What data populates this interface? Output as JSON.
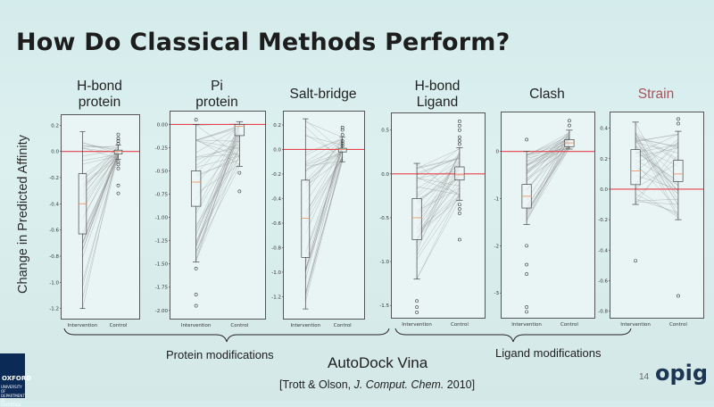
{
  "slide": {
    "title": "How Do Classical Methods Perform?",
    "y_axis_label": "Change in Predicted Affinity",
    "group_labels": [
      "Protein modifications",
      "Ligand modifications"
    ],
    "software": "AutoDock Vina",
    "citation": {
      "prefix": "[Trott & Olson, ",
      "journal": "J. Comput. Chem.",
      "suffix": " 2010]"
    },
    "slide_number": "14",
    "logo_text": "opig",
    "institution_logo": "OXFORD",
    "institution_sub": [
      "UNIVERSITY OF",
      "DEPARTMENT OF",
      "STATISTICS"
    ]
  },
  "colors": {
    "reference_line": "#e8424e",
    "pair_lines": "#8c8c8c",
    "box": "#444444",
    "median": "#e89a6b"
  },
  "chart_data": [
    {
      "type": "box-paired",
      "title": "H-bond\nprotein",
      "categories": [
        "Intervention",
        "Control"
      ],
      "ylim": [
        -1.25,
        0.25
      ],
      "yticks": [
        0.2,
        0.0,
        -0.2,
        -0.4,
        -0.6,
        -0.8,
        -1.0,
        -1.2
      ],
      "ytick_labels": [
        "0.2",
        "0.0",
        "-0.2",
        "-0.4",
        "-0.6",
        "-0.8",
        "-1.0",
        "-1.2"
      ],
      "reference_y": 0.0,
      "intervention_box": {
        "whisker_low": -1.2,
        "q1": -0.63,
        "median": -0.4,
        "q3": -0.17,
        "whisker_high": 0.15
      },
      "control_box": {
        "whisker_low": -0.06,
        "q1": -0.02,
        "median": 0.0,
        "q3": 0.01,
        "whisker_high": 0.05
      },
      "control_outliers": [
        0.13,
        0.1,
        0.08,
        0.06,
        -0.08,
        -0.1,
        -0.13,
        -0.26,
        -0.32
      ]
    },
    {
      "type": "box-paired",
      "title": "Pi\nprotein",
      "categories": [
        "Intervention",
        "Control"
      ],
      "ylim": [
        -2.05,
        0.1
      ],
      "yticks": [
        0.0,
        -0.25,
        -0.5,
        -0.75,
        -1.0,
        -1.25,
        -1.5,
        -1.75,
        -2.0
      ],
      "ytick_labels": [
        "0.00",
        "-0.25",
        "-0.50",
        "-0.75",
        "-1.00",
        "-1.25",
        "-1.50",
        "-1.75",
        "-2.00"
      ],
      "reference_y": 0.0,
      "intervention_box": {
        "whisker_low": -1.48,
        "q1": -0.88,
        "median": -0.62,
        "q3": -0.5,
        "whisker_high": 0.0
      },
      "intervention_outliers": [
        0.05,
        -1.55,
        -1.83,
        -1.95
      ],
      "control_box": {
        "whisker_low": -0.45,
        "q1": -0.12,
        "median": -0.02,
        "q3": 0.0,
        "whisker_high": 0.03
      },
      "control_outliers": [
        -0.52,
        -0.72
      ]
    },
    {
      "type": "box-paired",
      "title": "Salt-bridge",
      "categories": [
        "Intervention",
        "Control"
      ],
      "ylim": [
        -1.35,
        0.28
      ],
      "yticks": [
        0.2,
        0.0,
        -0.2,
        -0.4,
        -0.6,
        -0.8,
        -1.0,
        -1.2
      ],
      "ytick_labels": [
        "0.2",
        "0.0",
        "-0.2",
        "-0.4",
        "-0.6",
        "-0.8",
        "-1.0",
        "-1.2"
      ],
      "reference_y": 0.0,
      "intervention_box": {
        "whisker_low": -1.3,
        "q1": -0.88,
        "median": -0.56,
        "q3": -0.25,
        "whisker_high": 0.25
      },
      "control_box": {
        "whisker_low": -0.1,
        "q1": -0.02,
        "median": 0.0,
        "q3": 0.01,
        "whisker_high": 0.1
      },
      "control_outliers": [
        0.18,
        0.16,
        0.12,
        0.07,
        0.05,
        0.03
      ]
    },
    {
      "type": "box-paired",
      "title": "H-bond\nLigand",
      "categories": [
        "Intervention",
        "Control"
      ],
      "ylim": [
        -1.6,
        0.65
      ],
      "yticks": [
        0.5,
        0.0,
        -0.5,
        -1.0,
        -1.5
      ],
      "ytick_labels": [
        "0.5",
        "0.0",
        "-0.5",
        "-1.0",
        "-1.5"
      ],
      "reference_y": 0.0,
      "intervention_box": {
        "whisker_low": -1.2,
        "q1": -0.75,
        "median": -0.5,
        "q3": -0.28,
        "whisker_high": 0.12
      },
      "intervention_outliers": [
        -1.45,
        -1.52,
        -1.58
      ],
      "control_box": {
        "whisker_low": -0.3,
        "q1": -0.07,
        "median": -0.01,
        "q3": 0.08,
        "whisker_high": 0.3
      },
      "control_outliers": [
        0.6,
        0.55,
        0.5,
        0.42,
        0.38,
        0.34,
        -0.35,
        -0.4,
        -0.45,
        -0.75
      ]
    },
    {
      "type": "box-paired",
      "title": "Clash",
      "categories": [
        "Intervention",
        "Control"
      ],
      "ylim": [
        -3.45,
        0.75
      ],
      "yticks": [
        0,
        -1,
        -2,
        -3
      ],
      "ytick_labels": [
        "0",
        "-1",
        "-2",
        "-3"
      ],
      "reference_y": 0.0,
      "intervention_box": {
        "whisker_low": -1.55,
        "q1": -1.2,
        "median": -0.95,
        "q3": -0.7,
        "whisker_high": 0.0
      },
      "intervention_outliers": [
        0.25,
        -2.0,
        -2.4,
        -2.6,
        -3.3,
        -3.4
      ],
      "control_box": {
        "whisker_low": 0.05,
        "q1": 0.1,
        "median": 0.18,
        "q3": 0.25,
        "whisker_high": 0.45
      },
      "control_outliers": [
        0.55,
        0.65
      ]
    },
    {
      "type": "box-paired",
      "title": "Strain",
      "categories": [
        "Intervention",
        "Control"
      ],
      "ylim": [
        -0.82,
        0.48
      ],
      "yticks": [
        0.4,
        0.2,
        0.0,
        -0.2,
        -0.4,
        -0.6,
        -0.8
      ],
      "ytick_labels": [
        "0.4",
        "0.2",
        "0.0",
        "-0.2",
        "-0.4",
        "-0.6",
        "-0.8"
      ],
      "reference_y": 0.0,
      "intervention_box": {
        "whisker_low": -0.1,
        "q1": 0.03,
        "median": 0.12,
        "q3": 0.26,
        "whisker_high": 0.44
      },
      "intervention_outliers": [
        -0.47
      ],
      "control_box": {
        "whisker_low": -0.2,
        "q1": 0.05,
        "median": 0.1,
        "q3": 0.19,
        "whisker_high": 0.38
      },
      "control_outliers": [
        0.46,
        0.43,
        -0.7
      ]
    }
  ]
}
